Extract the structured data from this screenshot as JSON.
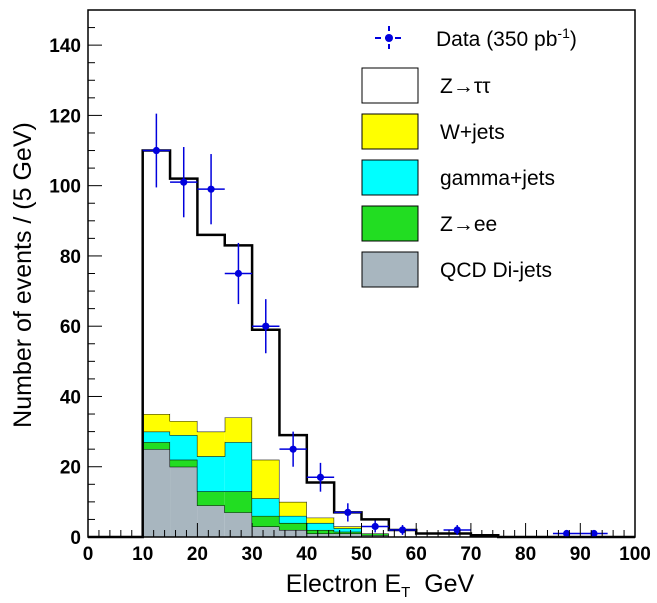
{
  "chart_data": {
    "type": "histogram-stack",
    "xlabel": "Electron E",
    "xlabel_sub": "T",
    "xlabel_unit": "GeV",
    "ylabel": "Number of events / (5 GeV)",
    "xlim": [
      0,
      100
    ],
    "ylim": [
      0,
      150
    ],
    "xticks": [
      0,
      10,
      20,
      30,
      40,
      50,
      60,
      70,
      80,
      90,
      100
    ],
    "yticks": [
      0,
      20,
      40,
      60,
      80,
      100,
      120,
      140
    ],
    "bin_edges": [
      10,
      15,
      20,
      25,
      30,
      35,
      40,
      45,
      50,
      55,
      60,
      65,
      70,
      75,
      80,
      85,
      90,
      95,
      100
    ],
    "stack": [
      {
        "name": "QCD Di-jets",
        "color": "#a8b6bf",
        "values": [
          25,
          20,
          9,
          7,
          3,
          2,
          1,
          1,
          0.5,
          0,
          0,
          0,
          0,
          0,
          0,
          0,
          0,
          0
        ]
      },
      {
        "name": "Z→ee",
        "color": "#22dd22",
        "values": [
          2,
          2,
          4,
          6,
          3,
          2,
          1,
          0.5,
          0.5,
          0,
          0,
          0,
          0,
          0,
          0,
          0,
          0,
          0
        ]
      },
      {
        "name": "gamma+jets",
        "color": "#00ffff",
        "values": [
          3,
          7,
          10,
          14,
          5,
          2,
          2,
          1,
          0,
          0,
          0,
          0,
          0,
          0,
          0,
          0,
          0,
          0
        ]
      },
      {
        "name": "W+jets",
        "color": "#ffff00",
        "values": [
          5,
          4,
          7,
          7,
          11,
          4,
          1.5,
          0.5,
          0,
          0,
          0,
          0,
          0,
          0,
          0,
          0,
          0,
          0
        ]
      },
      {
        "name": "Z→ττ",
        "color": "#ffffff",
        "values": [
          75,
          69,
          56,
          49,
          37,
          19,
          10,
          4,
          4,
          2,
          1,
          1,
          0.5,
          0,
          0,
          0,
          0,
          0
        ]
      }
    ],
    "total": [
      110,
      102,
      86,
      83,
      59,
      29,
      15.5,
      7,
      5,
      2,
      1,
      1,
      0.5,
      0,
      0,
      0,
      0,
      0
    ],
    "data": {
      "name": "Data",
      "color": "#0000dd",
      "x": [
        12.5,
        17.5,
        22.5,
        27.5,
        32.5,
        37.5,
        42.5,
        47.5,
        52.5,
        57.5,
        67.5,
        87.5,
        92.5
      ],
      "y": [
        110,
        101,
        99,
        75,
        60,
        25,
        17,
        7,
        3,
        2,
        2,
        1,
        1
      ],
      "err": [
        10.5,
        10,
        10,
        8.7,
        7.7,
        5,
        4.1,
        2.6,
        1.7,
        1.4,
        1.4,
        1,
        1
      ]
    },
    "legend": {
      "placement": "top-right",
      "data_entry": {
        "label": "Data (350 pb",
        "sup": "-1",
        "suffix": ")"
      },
      "entries": [
        {
          "label": "Z→ττ",
          "color": "#ffffff"
        },
        {
          "label": "W+jets",
          "color": "#ffff00"
        },
        {
          "label": "gamma+jets",
          "color": "#00ffff"
        },
        {
          "label": "Z→ee",
          "color": "#22dd22"
        },
        {
          "label": "QCD Di-jets",
          "color": "#a8b6bf"
        }
      ]
    },
    "grid": false
  }
}
